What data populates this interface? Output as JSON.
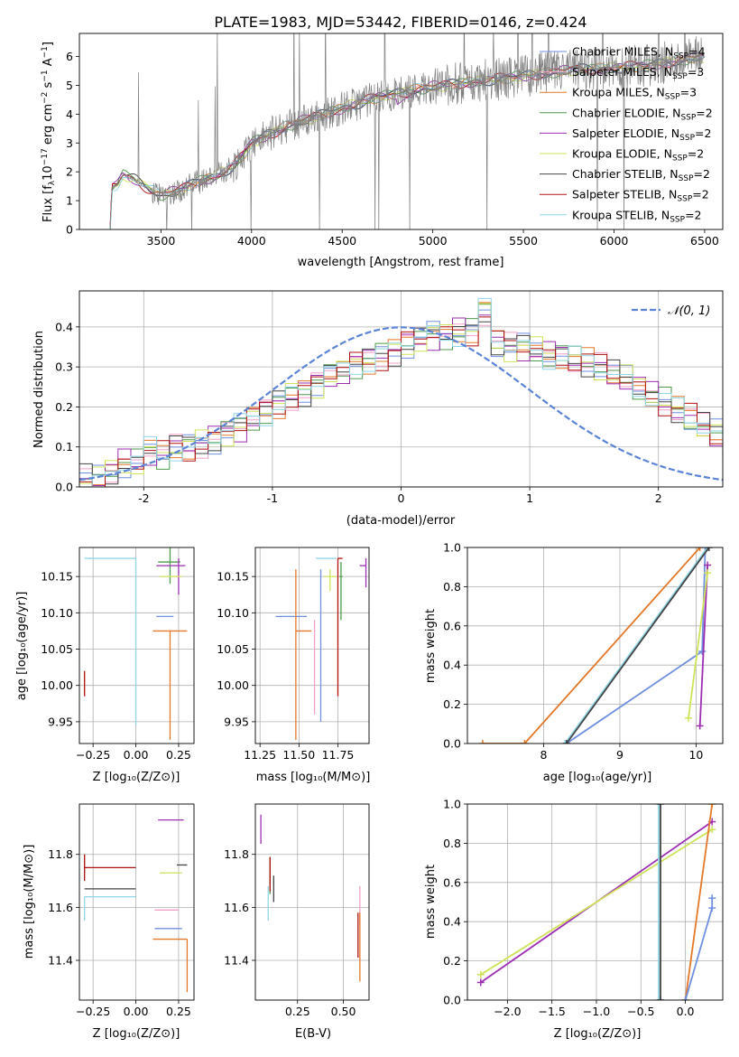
{
  "figure_title": "PLATE=1983, MJD=53442, FIBERID=0146, z=0.424",
  "colors": {
    "chabrier_miles": "#6f8fdf",
    "salpeter_miles": "#f2a0c8",
    "kroupa_miles": "#e4782a",
    "chabrier_elodie": "#4f9a4f",
    "salpeter_elodie": "#9c2eb2",
    "kroupa_elodie": "#cfe25a",
    "chabrier_stelib": "#444444",
    "salpeter_stelib": "#b01010",
    "kroupa_stelib": "#8fd6e6",
    "data_spectrum": "#808080",
    "normal_curve": "#5b84d6",
    "grid": "#b0b0b0"
  },
  "chart_data": [
    {
      "id": "spectrum",
      "type": "line",
      "xlabel": "wavelength [Angstrom, rest frame]",
      "ylabel": "Flux [fλ10⁻¹⁷ erg cm⁻² s⁻¹ A⁻¹]",
      "xlim": [
        3050,
        6600
      ],
      "ylim": [
        0,
        6.8
      ],
      "xticks": [
        3500,
        4000,
        4500,
        5000,
        5500,
        6000,
        6500
      ],
      "yticks": [
        0,
        1,
        2,
        3,
        4,
        5,
        6
      ],
      "grid": false,
      "legend_position": "upper right",
      "legend": [
        {
          "label": "Chabrier MILES, N",
          "sub": "SSP",
          "tail": "=4",
          "color_key": "chabrier_miles"
        },
        {
          "label": "Salpeter MILES, N",
          "sub": "SSP",
          "tail": "=3",
          "color_key": "salpeter_miles"
        },
        {
          "label": "Kroupa MILES, N",
          "sub": "SSP",
          "tail": "=3",
          "color_key": "kroupa_miles"
        },
        {
          "label": "Chabrier ELODIE, N",
          "sub": "SSP",
          "tail": "=2",
          "color_key": "chabrier_elodie"
        },
        {
          "label": "Salpeter ELODIE, N",
          "sub": "SSP",
          "tail": "=2",
          "color_key": "salpeter_elodie"
        },
        {
          "label": "Kroupa ELODIE, N",
          "sub": "SSP",
          "tail": "=2",
          "color_key": "kroupa_elodie"
        },
        {
          "label": "Chabrier STELIB, N",
          "sub": "SSP",
          "tail": "=2",
          "color_key": "chabrier_stelib"
        },
        {
          "label": "Salpeter STELIB, N",
          "sub": "SSP",
          "tail": "=2",
          "color_key": "salpeter_stelib"
        },
        {
          "label": "Kroupa STELIB, N",
          "sub": "SSP",
          "tail": "=2",
          "color_key": "kroupa_stelib"
        }
      ],
      "continuum": {
        "x": [
          3220,
          3230,
          3260,
          3290,
          3350,
          3450,
          3500,
          3600,
          3700,
          3800,
          3900,
          3950,
          4000,
          4100,
          4200,
          4300,
          4400,
          4500,
          4600,
          4700,
          4800,
          4900,
          5000,
          5200,
          5400,
          5600,
          5800,
          6000,
          6200,
          6400,
          6500
        ],
        "y": [
          0.0,
          1.45,
          1.55,
          1.9,
          1.75,
          1.35,
          1.2,
          1.35,
          1.65,
          1.85,
          2.2,
          2.55,
          3.0,
          3.3,
          3.6,
          3.8,
          4.0,
          4.2,
          4.4,
          4.6,
          4.7,
          4.85,
          4.95,
          5.1,
          5.25,
          5.4,
          5.55,
          5.6,
          5.7,
          5.9,
          6.0
        ]
      }
    },
    {
      "id": "residuals",
      "type": "step",
      "xlabel": "(data-model)/error",
      "ylabel": "Normed distribution",
      "xlim": [
        -2.5,
        2.5
      ],
      "ylim": [
        0,
        0.49
      ],
      "xticks": [
        -2,
        -1,
        0,
        1,
        2
      ],
      "yticks": [
        0.0,
        0.1,
        0.2,
        0.3,
        0.4
      ],
      "grid": true,
      "legend_position": "upper right",
      "legend_label": "𝒩(0, 1)",
      "normal": {
        "mu": 0,
        "sigma": 1
      },
      "bin_edges_start": -2.5,
      "bin_width": 0.1,
      "base": [
        0.02,
        0.02,
        0.04,
        0.06,
        0.06,
        0.09,
        0.08,
        0.1,
        0.1,
        0.11,
        0.12,
        0.14,
        0.15,
        0.17,
        0.19,
        0.21,
        0.23,
        0.24,
        0.26,
        0.28,
        0.29,
        0.31,
        0.32,
        0.33,
        0.34,
        0.36,
        0.37,
        0.38,
        0.38,
        0.39,
        0.39,
        0.44,
        0.36,
        0.35,
        0.35,
        0.34,
        0.33,
        0.33,
        0.32,
        0.31,
        0.3,
        0.28,
        0.27,
        0.25,
        0.23,
        0.21,
        0.19,
        0.17,
        0.15,
        0.13,
        0.1,
        0.09,
        0.08,
        0.07,
        0.06,
        0.05,
        0.05,
        0.04,
        0.04,
        0.03
      ]
    },
    {
      "id": "age_vs_Z",
      "type": "errorbar",
      "xlabel": "Z [log₁₀(Z/Z⊙)]",
      "ylabel": "age  [log₁₀(age/yr)]",
      "xlim": [
        -0.33,
        0.34
      ],
      "ylim": [
        9.92,
        10.19
      ],
      "xticks": [
        -0.25,
        0.0,
        0.25
      ],
      "xticklabels": [
        "−0.25",
        "0.00",
        "0.25"
      ],
      "yticks": [
        9.95,
        10.0,
        10.05,
        10.1,
        10.15
      ],
      "yticklabels": [
        "9.95",
        "10.00",
        "10.05",
        "10.10",
        "10.15"
      ],
      "grid": true,
      "points": [
        {
          "x": 0.0,
          "y": 10.175,
          "xerr": [
            0.3,
            0.0
          ],
          "yerr": [
            0.23,
            0.0
          ],
          "color_key": "kroupa_stelib"
        },
        {
          "x": 0.2,
          "y": 10.17,
          "xerr": [
            0.07,
            0.06
          ],
          "yerr": [
            0.03,
            0.02
          ],
          "color_key": "chabrier_elodie"
        },
        {
          "x": 0.25,
          "y": 10.165,
          "xerr": [
            0.13,
            0.04
          ],
          "yerr": [
            0.04,
            0.01
          ],
          "color_key": "salpeter_elodie"
        },
        {
          "x": 0.22,
          "y": 10.15,
          "xerr": [
            0.08,
            0.05
          ],
          "yerr": [
            0.0,
            0.0
          ],
          "color_key": "kroupa_elodie"
        },
        {
          "x": 0.2,
          "y": 10.095,
          "xerr": [
            0.08,
            0.02
          ],
          "yerr": [
            0.0,
            0.0
          ],
          "color_key": "chabrier_miles"
        },
        {
          "x": 0.2,
          "y": 10.075,
          "xerr": [
            0.1,
            0.1
          ],
          "yerr": [
            0.15,
            0.0
          ],
          "color_key": "kroupa_miles"
        },
        {
          "x": -0.3,
          "y": 10.0,
          "xerr": [
            0.0,
            0.0
          ],
          "yerr": [
            0.015,
            0.02
          ],
          "color_key": "salpeter_stelib"
        }
      ]
    },
    {
      "id": "age_vs_mass",
      "type": "errorbar",
      "xlabel": "mass [log₁₀(M/M⊙)]",
      "ylabel": "",
      "xlim": [
        11.22,
        11.95
      ],
      "ylim": [
        9.92,
        10.19
      ],
      "xticks": [
        11.25,
        11.5,
        11.75
      ],
      "xticklabels": [
        "11.25",
        "11.50",
        "11.75"
      ],
      "yticks": [
        9.95,
        10.0,
        10.05,
        10.1,
        10.15
      ],
      "yticklabels": [
        "9.95",
        "10.00",
        "10.05",
        "10.10",
        "10.15"
      ],
      "grid": true,
      "points": [
        {
          "x": 11.55,
          "y": 10.095,
          "xerr": [
            0.2,
            0.0
          ],
          "yerr": [
            0.0,
            0.0
          ],
          "color_key": "chabrier_miles"
        },
        {
          "x": 11.48,
          "y": 10.075,
          "xerr": [
            0.0,
            0.1
          ],
          "yerr": [
            0.15,
            0.085
          ],
          "color_key": "kroupa_miles"
        },
        {
          "x": 11.6,
          "y": 10.09,
          "xerr": [
            0.0,
            0.0
          ],
          "yerr": [
            0.13,
            0.0
          ],
          "color_key": "salpeter_miles"
        },
        {
          "x": 11.64,
          "y": 10.1,
          "xerr": [
            0.0,
            0.0
          ],
          "yerr": [
            0.15,
            0.06
          ],
          "color_key": "chabrier_miles"
        },
        {
          "x": 11.66,
          "y": 10.175,
          "xerr": [
            0.05,
            0.08
          ],
          "yerr": [
            0.0,
            0.0
          ],
          "color_key": "kroupa_stelib"
        },
        {
          "x": 11.7,
          "y": 10.15,
          "xerr": [
            0.04,
            0.04
          ],
          "yerr": [
            0.02,
            0.01
          ],
          "color_key": "kroupa_elodie"
        },
        {
          "x": 11.75,
          "y": 10.175,
          "xerr": [
            0.0,
            0.03
          ],
          "yerr": [
            0.19,
            0.0
          ],
          "color_key": "salpeter_stelib"
        },
        {
          "x": 11.77,
          "y": 10.15,
          "xerr": [
            0.01,
            0.01
          ],
          "yerr": [
            0.06,
            0.02
          ],
          "color_key": "chabrier_elodie"
        },
        {
          "x": 11.93,
          "y": 10.165,
          "xerr": [
            0.04,
            0.0
          ],
          "yerr": [
            0.03,
            0.01
          ],
          "color_key": "salpeter_elodie"
        }
      ]
    },
    {
      "id": "massweight_vs_age",
      "type": "line",
      "xlabel": "age  [log₁₀(age/yr)]",
      "ylabel": "mass weight",
      "xlim": [
        7.0,
        10.35
      ],
      "ylim": [
        0.0,
        1.0
      ],
      "xticks": [
        8,
        9,
        10
      ],
      "yticks": [
        0.0,
        0.2,
        0.4,
        0.6,
        0.8,
        1.0
      ],
      "grid": true,
      "series": [
        {
          "color_key": "kroupa_miles",
          "x": [
            7.2,
            7.75,
            10.05
          ],
          "y": [
            0.0,
            0.0,
            1.0
          ]
        },
        {
          "color_key": "chabrier_miles",
          "x": [
            8.3,
            10.08,
            10.12
          ],
          "y": [
            0.0,
            0.47,
            1.0
          ]
        },
        {
          "color_key": "kroupa_stelib",
          "x": [
            8.28,
            10.15
          ],
          "y": [
            0.0,
            1.0
          ]
        },
        {
          "color_key": "chabrier_stelib",
          "x": [
            8.3,
            10.17
          ],
          "y": [
            0.0,
            1.0
          ]
        },
        {
          "color_key": "salpeter_elodie",
          "x": [
            10.05,
            10.15
          ],
          "y": [
            0.09,
            0.91
          ]
        },
        {
          "color_key": "kroupa_elodie",
          "x": [
            9.9,
            10.15
          ],
          "y": [
            0.13,
            0.87
          ]
        }
      ]
    },
    {
      "id": "mass_vs_Z",
      "type": "errorbar",
      "xlabel": "Z [log₁₀(Z/Z⊙)]",
      "ylabel": "mass [log₁₀(M/M⊙)]",
      "xlim": [
        -0.33,
        0.34
      ],
      "ylim": [
        11.25,
        11.99
      ],
      "xticks": [
        -0.25,
        0.0,
        0.25
      ],
      "xticklabels": [
        "−0.25",
        "0.00",
        "0.25"
      ],
      "yticks": [
        11.4,
        11.6,
        11.8
      ],
      "yticklabels": [
        "11.4",
        "11.6",
        "11.8"
      ],
      "grid": true,
      "points": [
        {
          "x": -0.3,
          "y": 11.75,
          "xerr": [
            0.0,
            0.3
          ],
          "yerr": [
            0.05,
            0.05
          ],
          "color_key": "salpeter_stelib"
        },
        {
          "x": -0.3,
          "y": 11.67,
          "xerr": [
            0.0,
            0.3
          ],
          "yerr": [
            0.0,
            0.0
          ],
          "color_key": "chabrier_stelib"
        },
        {
          "x": -0.3,
          "y": 11.64,
          "xerr": [
            0.0,
            0.3
          ],
          "yerr": [
            0.09,
            0.0
          ],
          "color_key": "kroupa_stelib"
        },
        {
          "x": 0.25,
          "y": 11.93,
          "xerr": [
            0.12,
            0.03
          ],
          "yerr": [
            0.0,
            0.0
          ],
          "color_key": "salpeter_elodie"
        },
        {
          "x": 0.27,
          "y": 11.76,
          "xerr": [
            0.03,
            0.03
          ],
          "yerr": [
            0.0,
            0.0
          ],
          "color_key": "chabrier_stelib"
        },
        {
          "x": 0.24,
          "y": 11.73,
          "xerr": [
            0.1,
            0.03
          ],
          "yerr": [
            0.0,
            0.0
          ],
          "color_key": "kroupa_elodie"
        },
        {
          "x": 0.25,
          "y": 11.59,
          "xerr": [
            0.14,
            0.0
          ],
          "yerr": [
            0.0,
            0.0
          ],
          "color_key": "salpeter_miles"
        },
        {
          "x": 0.27,
          "y": 11.52,
          "xerr": [
            0.16,
            0.0
          ],
          "yerr": [
            0.0,
            0.0
          ],
          "color_key": "chabrier_miles"
        },
        {
          "x": 0.3,
          "y": 11.48,
          "xerr": [
            0.2,
            0.0
          ],
          "yerr": [
            0.2,
            0.0
          ],
          "color_key": "kroupa_miles"
        }
      ]
    },
    {
      "id": "mass_vs_ebv",
      "type": "errorbar",
      "xlabel": "E(B-V)",
      "ylabel": "",
      "xlim": [
        0.02,
        0.64
      ],
      "ylim": [
        11.25,
        11.99
      ],
      "xticks": [
        0.25,
        0.5
      ],
      "xticklabels": [
        "0.25",
        "0.50"
      ],
      "yticks": [
        11.4,
        11.6,
        11.8
      ],
      "yticklabels": [
        "11.4",
        "11.6",
        "11.8"
      ],
      "grid": true,
      "points": [
        {
          "x": 0.05,
          "y": 11.9,
          "xerr": [
            0.0,
            0.0
          ],
          "yerr": [
            0.06,
            0.05
          ],
          "color_key": "salpeter_elodie"
        },
        {
          "x": 0.1,
          "y": 11.7,
          "xerr": [
            0.0,
            0.0
          ],
          "yerr": [
            0.05,
            0.09
          ],
          "color_key": "chabrier_elodie"
        },
        {
          "x": 0.12,
          "y": 11.68,
          "xerr": [
            0.0,
            0.0
          ],
          "yerr": [
            0.06,
            0.04
          ],
          "color_key": "chabrier_stelib"
        },
        {
          "x": 0.09,
          "y": 11.62,
          "xerr": [
            0.0,
            0.0
          ],
          "yerr": [
            0.07,
            0.06
          ],
          "color_key": "kroupa_stelib"
        },
        {
          "x": 0.1,
          "y": 11.73,
          "xerr": [
            0.0,
            0.0
          ],
          "yerr": [
            0.07,
            0.06
          ],
          "color_key": "salpeter_stelib"
        },
        {
          "x": 0.59,
          "y": 11.6,
          "xerr": [
            0.0,
            0.0
          ],
          "yerr": [
            0.07,
            0.08
          ],
          "color_key": "salpeter_miles"
        },
        {
          "x": 0.59,
          "y": 11.45,
          "xerr": [
            0.0,
            0.0
          ],
          "yerr": [
            0.13,
            0.13
          ],
          "color_key": "kroupa_miles"
        },
        {
          "x": 0.58,
          "y": 11.45,
          "xerr": [
            0.0,
            0.0
          ],
          "yerr": [
            0.04,
            0.13
          ],
          "color_key": "salpeter_stelib"
        }
      ]
    },
    {
      "id": "massweight_vs_Z",
      "type": "line",
      "xlabel": "Z [log₁₀(Z/Z⊙)]",
      "ylabel": "mass weight",
      "xlim": [
        -2.45,
        0.42
      ],
      "ylim": [
        0.0,
        1.0
      ],
      "xticks": [
        -2.0,
        -1.5,
        -1.0,
        -0.5,
        0.0
      ],
      "xticklabels": [
        "−2.0",
        "−1.5",
        "−1.0",
        "−0.5",
        "0.0"
      ],
      "yticks": [
        0.0,
        0.2,
        0.4,
        0.6,
        0.8,
        1.0
      ],
      "grid": true,
      "series": [
        {
          "color_key": "salpeter_elodie",
          "x": [
            -2.3,
            0.3
          ],
          "y": [
            0.09,
            0.91
          ]
        },
        {
          "color_key": "kroupa_elodie",
          "x": [
            -2.3,
            0.3
          ],
          "y": [
            0.13,
            0.87
          ]
        },
        {
          "color_key": "kroupa_stelib",
          "x": [
            -0.3,
            -0.3
          ],
          "y": [
            0.0,
            1.0
          ]
        },
        {
          "color_key": "chabrier_stelib",
          "x": [
            -0.28,
            -0.28
          ],
          "y": [
            0.0,
            1.0
          ]
        },
        {
          "color_key": "kroupa_miles",
          "x": [
            0.0,
            0.3
          ],
          "y": [
            0.0,
            1.0
          ]
        },
        {
          "color_key": "chabrier_miles",
          "x": [
            0.0,
            0.3,
            0.3
          ],
          "y": [
            0.0,
            0.47,
            0.52
          ]
        }
      ]
    }
  ]
}
